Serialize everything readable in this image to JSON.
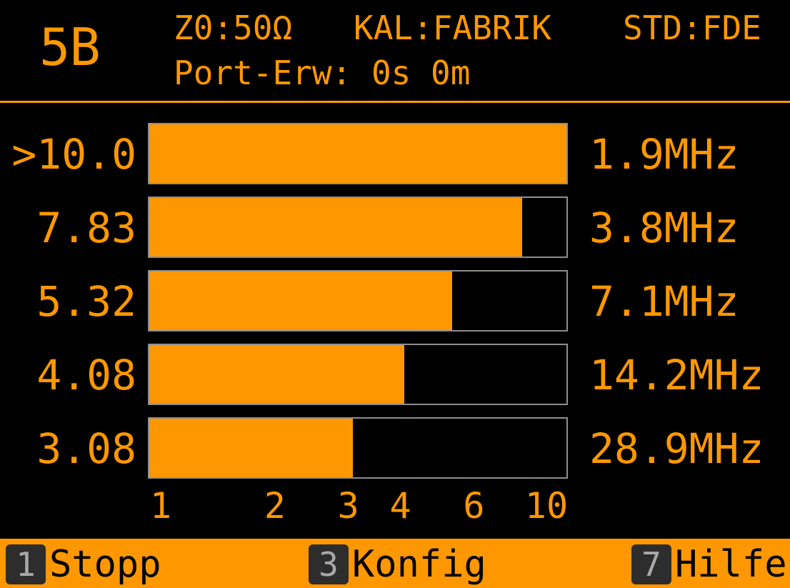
{
  "header": {
    "mode": "5B",
    "z0": "Z0:50Ω",
    "calibration": "KAL:FABRIK",
    "standard": "STD:FDE",
    "port_extension": "Port-Erw: 0s 0m"
  },
  "meter": {
    "scale": "log",
    "axis_range": [
      1,
      10
    ],
    "ticks": [
      "1",
      "2",
      "3",
      "4",
      "6",
      "10"
    ],
    "tick_values": [
      1,
      2,
      3,
      4,
      6,
      10
    ],
    "rows": [
      {
        "value_label": ">10.0",
        "value": 10.0,
        "freq": "1.9MHz"
      },
      {
        "value_label": "7.83",
        "value": 7.83,
        "freq": "3.8MHz"
      },
      {
        "value_label": "5.32",
        "value": 5.32,
        "freq": "7.1MHz"
      },
      {
        "value_label": "4.08",
        "value": 4.08,
        "freq": "14.2MHz"
      },
      {
        "value_label": "3.08",
        "value": 3.08,
        "freq": "28.9MHz"
      }
    ]
  },
  "softkeys": [
    {
      "key": "1",
      "label": "Stopp"
    },
    {
      "key": "3",
      "label": "Konfig"
    },
    {
      "key": "7",
      "label": "Hilfe"
    }
  ],
  "colors": {
    "accent": "#ff9800",
    "background": "#000000",
    "bar_border": "#8e8e8e",
    "key_background": "#2d2d2d"
  }
}
